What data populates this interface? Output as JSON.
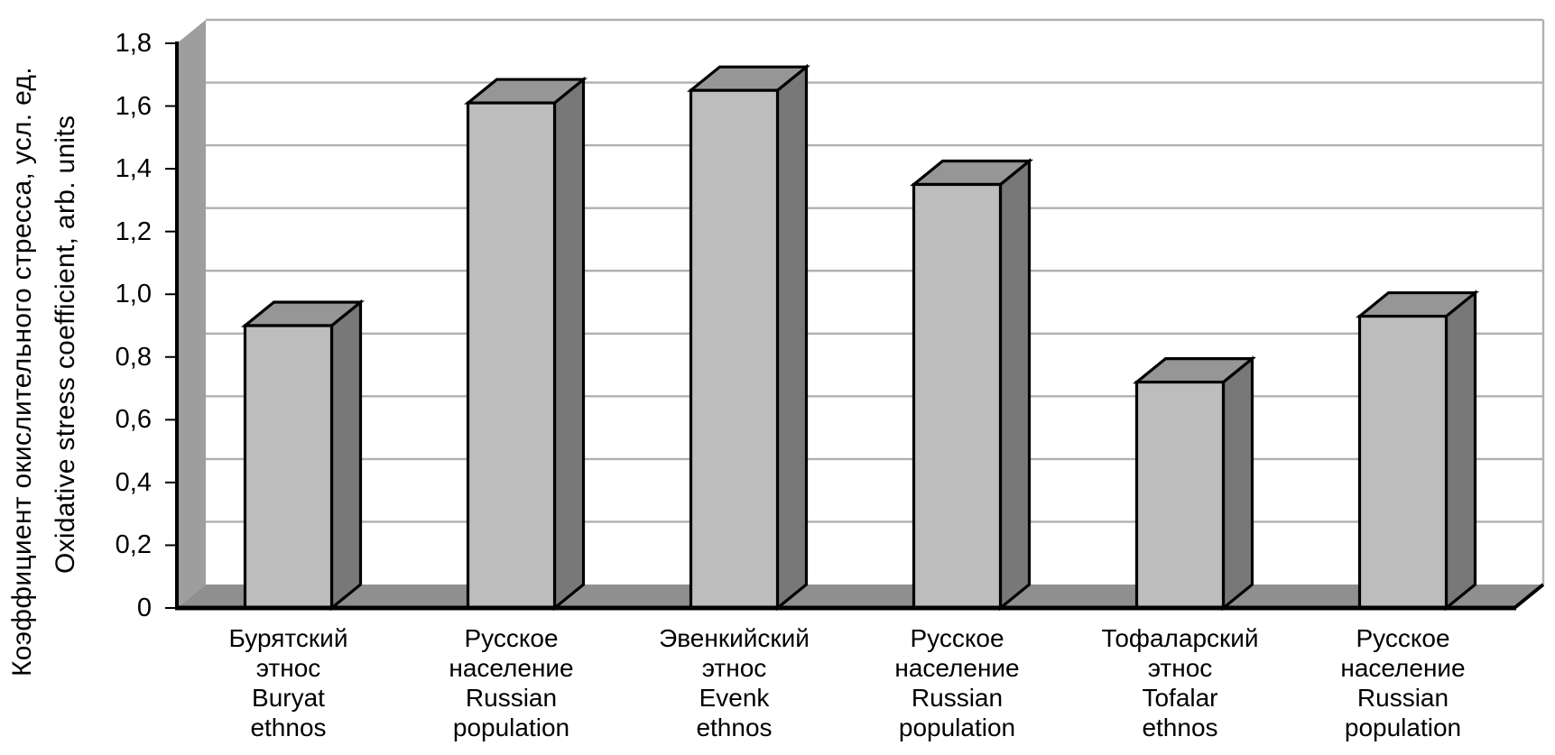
{
  "chart_data": {
    "type": "bar",
    "style": "excel-3d-column",
    "title": "",
    "ylabel_ru": "Коэффициент окислительного стресса, усл. ед.",
    "ylabel_en": "Oxidative stress coefficient, arb. units",
    "xlabel": "",
    "categories": [
      "Бурятский этнос / Buryat ethnos",
      "Русское население / Russian population",
      "Эвенкийский этнос / Evenk ethnos",
      "Русское население / Russian population",
      "Тофаларский этнос / Tofalar ethnos",
      "Русское население / Russian population"
    ],
    "categories_lines": [
      [
        "Бурятский",
        "этнос",
        "Buryat",
        "ethnos"
      ],
      [
        "Русское",
        "население",
        "Russian",
        "population"
      ],
      [
        "Эвенкийский",
        "этнос",
        "Evenk",
        "ethnos"
      ],
      [
        "Русское",
        "население",
        "Russian",
        "population"
      ],
      [
        "Тофаларский",
        "этнос",
        "Tofalar",
        "ethnos"
      ],
      [
        "Русское",
        "население",
        "Russian",
        "population"
      ]
    ],
    "values": [
      0.9,
      1.61,
      1.65,
      1.35,
      0.72,
      0.93
    ],
    "ylim": [
      0,
      1.8
    ],
    "ytick_step": 0.2,
    "ytick_values": [
      0,
      0.2,
      0.4,
      0.6,
      0.8,
      1.0,
      1.2,
      1.4,
      1.6,
      1.8
    ],
    "ytick_labels": [
      "0",
      "0,2",
      "0,4",
      "0,6",
      "0,8",
      "1,0",
      "1,2",
      "1,4",
      "1,6",
      "1,8"
    ],
    "decimal_separator": ",",
    "grid": true,
    "legend": false,
    "colors": {
      "bar_front": "#bdbdbd",
      "bar_top": "#969696",
      "bar_side": "#787878",
      "wall_side": "#9e9e9e",
      "floor": "#8f8f8f",
      "back_wall": "#ffffff",
      "gridline": "#b0b0b0",
      "outline": "#000000",
      "background": "#ffffff"
    }
  }
}
